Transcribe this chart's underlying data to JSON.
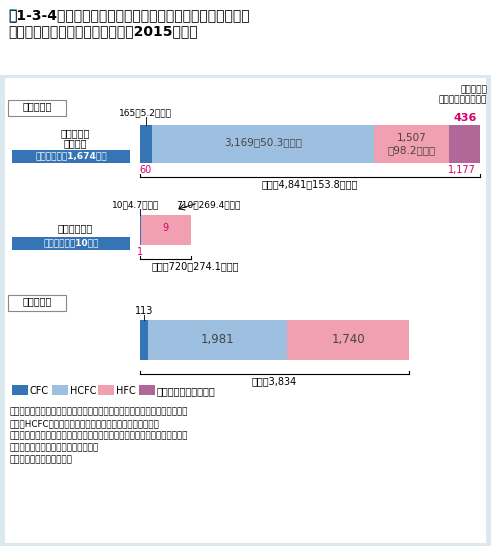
{
  "bg_color": "#dce8f0",
  "white": "#ffffff",
  "colors": {
    "CFC": "#3575b5",
    "HCFC": "#9dbfe0",
    "HFC": "#f0a0b0",
    "reuse": "#b06898"
  },
  "pink_text": "#d4006a",
  "title_num_color": "#0099cc",
  "title_line1": "図 1-3-4　業務用冷凍空調機器・カーエアコンからのフロン",
  "title_line2": "類の回収・破壊量等（2015年度）",
  "unit_text": "単位：トン",
  "unit_text2": "（）は回収した台数",
  "label_kaishuu": "回収した量",
  "label_hakai": "破壊した量",
  "sec1_l1": "業務用冷凍",
  "sec1_l2": "空調機器",
  "sec1_sub": "再利用合計：1,674トン",
  "sec2_l1": "カーエアコン",
  "sec2_sub": "再利用合計：10トン",
  "row1_cfc": 165,
  "row1_hcfc": 3169,
  "row1_hfc": 1507,
  "row1_reuse": 436,
  "row1_inner_cfc": 60,
  "row1_inner_hfc": 1177,
  "row1_cfc_lbl": "165（5.2万台）",
  "row1_hcfc_lbl": "3,169（50.3万台）",
  "row1_hfc_lbl": "1,507\n（98.2万台）",
  "row1_reuse_lbl": "436",
  "row1_inner_cfc_lbl": "60",
  "row1_inner_hfc_lbl": "1,177",
  "row1_total": "合計：4,841（153.8万台）",
  "row2_cfc": 10,
  "row2_hfc": 710,
  "row2_inner_cfc": 1,
  "row2_inner_hfc": 9,
  "row2_cfc_lbl": "10（4.7万台）",
  "row2_hfc_lbl": "710（269.4万台）",
  "row2_inner_cfc_lbl": "1",
  "row2_inner_hfc_lbl": "9",
  "row2_total": "合計：720（274.1万台）",
  "row3_cfc": 113,
  "row3_hcfc": 1981,
  "row3_hfc": 1740,
  "row3_cfc_lbl": "113",
  "row3_hcfc_lbl": "1,981",
  "row3_hfc_lbl": "1,740",
  "row3_total": "合計：3,834",
  "legend": [
    "CFC",
    "HCFC",
    "HFC",
    "うち再利用等された量"
  ],
  "note1": "注１：小数点未満を四捨五入のため、数値の和は必ずしも合計に一致しない",
  "note2": "　２：HCFCはカーエアコンの冷媒として用いられていない",
  "note3": "　３：破壊した量は、業務用冷凍空調機器及びカーエアコンから回収された",
  "note4": "　　　フロン類の合計の破壊量である",
  "note5": "資料：経済産業省、環境省"
}
